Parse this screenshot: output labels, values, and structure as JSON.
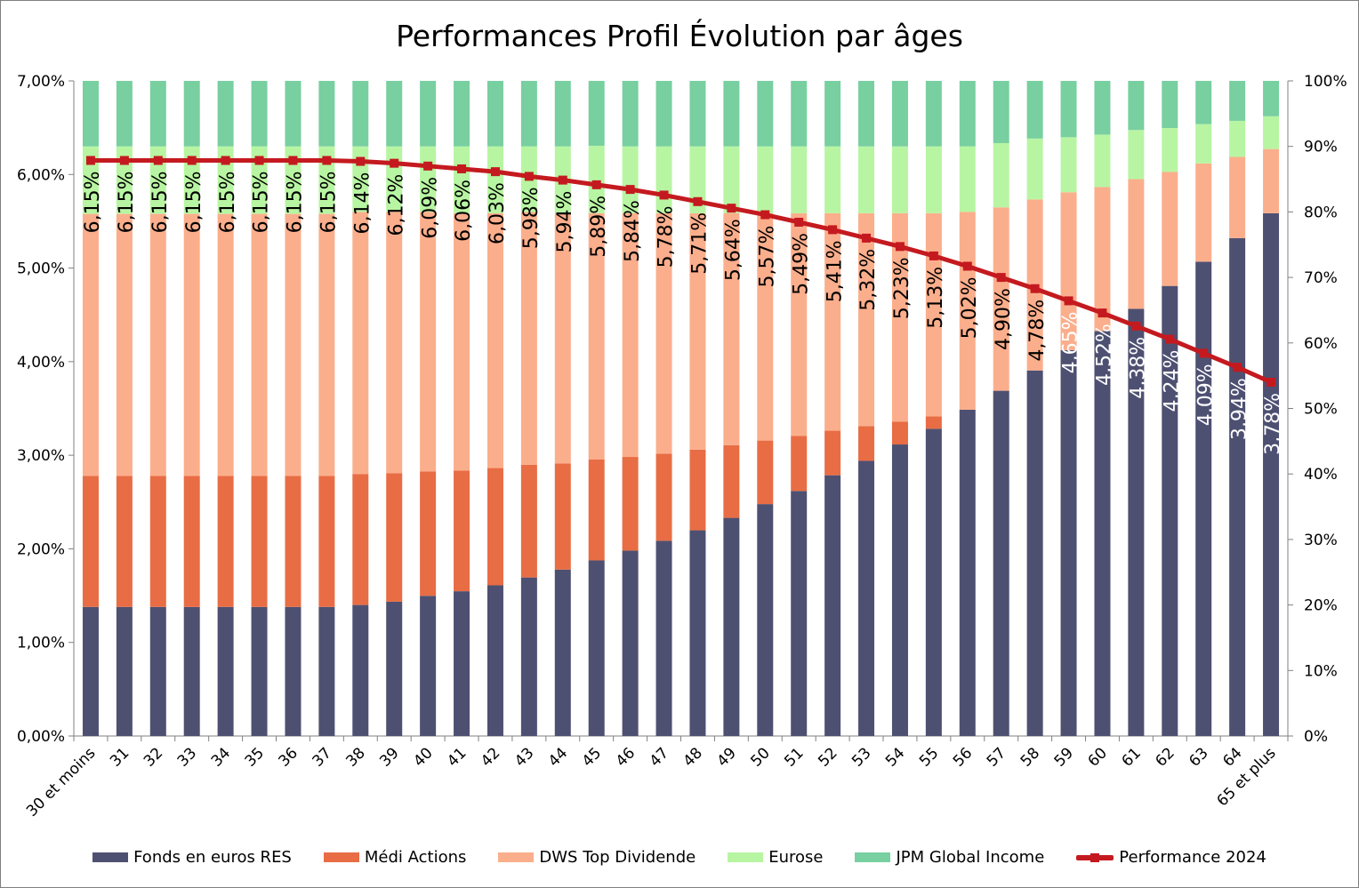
{
  "chart_data": {
    "type": "bar",
    "stacked": true,
    "title": "Performances Profil Évolution par âges",
    "categories": [
      "30 et moins",
      "31",
      "32",
      "33",
      "34",
      "35",
      "36",
      "37",
      "38",
      "39",
      "40",
      "41",
      "42",
      "43",
      "44",
      "45",
      "46",
      "47",
      "48",
      "49",
      "50",
      "51",
      "52",
      "53",
      "54",
      "55",
      "56",
      "57",
      "58",
      "59",
      "60",
      "61",
      "62",
      "63",
      "64",
      "65 et plus"
    ],
    "series": [
      {
        "name": "Fonds en euros RES",
        "color": "#4e5072",
        "axis": "right",
        "values": [
          19.7,
          19.7,
          19.7,
          19.7,
          19.7,
          19.7,
          19.7,
          19.7,
          20.0,
          20.5,
          21.4,
          22.1,
          23.0,
          24.2,
          25.4,
          26.8,
          28.3,
          29.8,
          31.4,
          33.3,
          35.4,
          37.4,
          39.8,
          42.0,
          44.5,
          46.9,
          49.8,
          52.7,
          55.8,
          58.9,
          61.8,
          65.2,
          68.7,
          72.4,
          76.0,
          79.8
        ]
      },
      {
        "name": "Médi Actions",
        "color": "#e86d44",
        "axis": "right",
        "values": [
          20.0,
          20.0,
          20.0,
          20.0,
          20.0,
          20.0,
          20.0,
          20.0,
          20.0,
          19.6,
          19.0,
          18.4,
          17.9,
          17.2,
          16.2,
          15.4,
          14.3,
          13.3,
          12.3,
          11.1,
          9.7,
          8.4,
          6.8,
          5.3,
          3.5,
          1.9,
          0,
          0,
          0,
          0,
          0,
          0,
          0,
          0,
          0,
          0
        ]
      },
      {
        "name": "DWS Top Dividende",
        "color": "#fbae8c",
        "axis": "right",
        "values": [
          40.0,
          40.0,
          40.0,
          40.0,
          40.0,
          40.0,
          40.0,
          40.0,
          40.0,
          39.9,
          39.6,
          39.3,
          38.9,
          38.6,
          38.2,
          37.6,
          37.2,
          36.7,
          36.1,
          35.4,
          34.7,
          34.0,
          33.2,
          32.5,
          31.8,
          31.0,
          30.2,
          28.0,
          26.1,
          24.1,
          22.0,
          19.8,
          17.4,
          15.0,
          12.4,
          9.8
        ]
      },
      {
        "name": "Eurose",
        "color": "#b8f5a2",
        "axis": "right",
        "values": [
          10.3,
          10.3,
          10.3,
          10.3,
          10.3,
          10.3,
          10.3,
          10.3,
          10.0,
          10.0,
          10.0,
          10.2,
          10.2,
          10.0,
          10.2,
          10.3,
          10.2,
          10.2,
          10.2,
          10.2,
          10.2,
          10.2,
          10.2,
          10.2,
          10.2,
          10.2,
          10.0,
          9.8,
          9.3,
          8.4,
          8.0,
          7.5,
          6.7,
          6.0,
          5.5,
          5.0
        ]
      },
      {
        "name": "JPM Global Income",
        "color": "#78cfa0",
        "axis": "right",
        "values": [
          10.0,
          10.0,
          10.0,
          10.0,
          10.0,
          10.0,
          10.0,
          10.0,
          10.0,
          10.0,
          10.0,
          10.0,
          10.0,
          10.0,
          10.0,
          9.9,
          10.0,
          10.0,
          10.0,
          10.0,
          10.0,
          10.0,
          10.0,
          10.0,
          10.0,
          10.0,
          10.0,
          9.5,
          8.8,
          8.6,
          8.2,
          7.5,
          7.2,
          6.6,
          6.1,
          5.4
        ]
      },
      {
        "name": "Performance 2024",
        "type": "line",
        "color": "#c41a1f",
        "axis": "left",
        "values": [
          6.15,
          6.15,
          6.15,
          6.15,
          6.15,
          6.15,
          6.15,
          6.15,
          6.14,
          6.12,
          6.09,
          6.06,
          6.03,
          5.98,
          5.94,
          5.89,
          5.84,
          5.78,
          5.71,
          5.64,
          5.57,
          5.49,
          5.41,
          5.32,
          5.23,
          5.13,
          5.02,
          4.9,
          4.78,
          4.65,
          4.52,
          4.38,
          4.24,
          4.09,
          3.94,
          3.78
        ],
        "labels": [
          "6,15%",
          "6,15%",
          "6,15%",
          "6,15%",
          "6,15%",
          "6,15%",
          "6,15%",
          "6,15%",
          "6,14%",
          "6,12%",
          "6,09%",
          "6,06%",
          "6,03%",
          "5,98%",
          "5,94%",
          "5,89%",
          "5,84%",
          "5,78%",
          "5,71%",
          "5,64%",
          "5,57%",
          "5,49%",
          "5,41%",
          "5,32%",
          "5,23%",
          "5,13%",
          "5,02%",
          "4,90%",
          "4,78%",
          "4,65%",
          "4,52%",
          "4,38%",
          "4,24%",
          "4,09%",
          "3,94%",
          "3,78%"
        ],
        "label_colors": [
          "#000000",
          "#000000",
          "#000000",
          "#000000",
          "#000000",
          "#000000",
          "#000000",
          "#000000",
          "#000000",
          "#000000",
          "#000000",
          "#000000",
          "#000000",
          "#000000",
          "#000000",
          "#000000",
          "#000000",
          "#000000",
          "#000000",
          "#000000",
          "#000000",
          "#000000",
          "#000000",
          "#000000",
          "#000000",
          "#000000",
          "#000000",
          "#000000",
          "#000000",
          "#ffffff",
          "#ffffff",
          "#ffffff",
          "#ffffff",
          "#ffffff",
          "#ffffff",
          "#ffffff"
        ]
      }
    ],
    "y_left": {
      "ylim": [
        0,
        7
      ],
      "ticks": [
        "0,00%",
        "1,00%",
        "2,00%",
        "3,00%",
        "4,00%",
        "5,00%",
        "6,00%",
        "7,00%"
      ]
    },
    "y_right": {
      "ylim": [
        0,
        100
      ],
      "ticks": [
        "0%",
        "10%",
        "20%",
        "30%",
        "40%",
        "50%",
        "60%",
        "70%",
        "80%",
        "90%",
        "100%"
      ]
    },
    "grid": false,
    "legend_position": "bottom"
  }
}
